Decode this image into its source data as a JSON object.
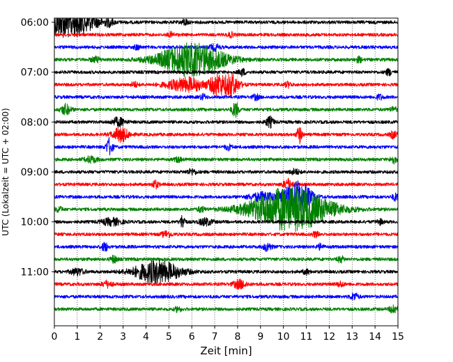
{
  "chart_data": {
    "type": "line",
    "title": "",
    "xlabel": "Zeit  [min]",
    "ylabel": "UTC (Lokalzeit = UTC + 02:00)",
    "xlim": [
      0,
      15
    ],
    "x_ticks": [
      0,
      1,
      2,
      3,
      4,
      5,
      6,
      7,
      8,
      9,
      10,
      11,
      12,
      13,
      14,
      15
    ],
    "x_tick_labels": [
      "0",
      "1",
      "2",
      "3",
      "4",
      "5",
      "6",
      "7",
      "8",
      "9",
      "10",
      "11",
      "12",
      "13",
      "14",
      "15"
    ],
    "y_tick_labels": [
      "06:00",
      "07:00",
      "08:00",
      "09:00",
      "10:00",
      "11:00"
    ],
    "y_range": [
      "05:55",
      "12:05"
    ],
    "grid": "vertical-dotted",
    "trace_interval_min": 15,
    "trace_color_cycle": [
      "#000000",
      "#ff0000",
      "#0000ff",
      "#008000"
    ],
    "traces": [
      {
        "start": "06:00",
        "color": "#000000",
        "events": [
          {
            "t": 0.6,
            "a": 1.8,
            "w": 0.8
          },
          {
            "t": 2.4,
            "a": 0.35,
            "w": 0.12
          },
          {
            "t": 5.7,
            "a": 0.35,
            "w": 0.1
          }
        ]
      },
      {
        "start": "06:15",
        "color": "#ff0000",
        "events": [
          {
            "t": 5.1,
            "a": 0.25,
            "w": 0.1
          },
          {
            "t": 7.7,
            "a": 0.25,
            "w": 0.1
          }
        ]
      },
      {
        "start": "06:30",
        "color": "#0000ff",
        "events": [
          {
            "t": 3.6,
            "a": 0.25,
            "w": 0.1
          },
          {
            "t": 7.0,
            "a": 0.35,
            "w": 0.15
          }
        ]
      },
      {
        "start": "06:45",
        "color": "#008000",
        "events": [
          {
            "t": 6.0,
            "a": 1.9,
            "w": 1.0
          },
          {
            "t": 1.8,
            "a": 0.3,
            "w": 0.15
          },
          {
            "t": 13.3,
            "a": 0.3,
            "w": 0.1
          }
        ]
      },
      {
        "start": "07:00",
        "color": "#000000",
        "events": [
          {
            "t": 8.2,
            "a": 0.4,
            "w": 0.1
          },
          {
            "t": 14.6,
            "a": 0.35,
            "w": 0.1
          }
        ]
      },
      {
        "start": "07:15",
        "color": "#ff0000",
        "events": [
          {
            "t": 3.5,
            "a": 0.3,
            "w": 0.1
          },
          {
            "t": 5.8,
            "a": 0.8,
            "w": 0.6
          },
          {
            "t": 7.1,
            "a": 1.2,
            "w": 0.2
          },
          {
            "t": 7.7,
            "a": 1.3,
            "w": 0.25
          },
          {
            "t": 10.2,
            "a": 0.3,
            "w": 0.1
          }
        ]
      },
      {
        "start": "07:30",
        "color": "#0000ff",
        "events": [
          {
            "t": 6.5,
            "a": 0.3,
            "w": 0.1
          },
          {
            "t": 8.8,
            "a": 0.3,
            "w": 0.1
          },
          {
            "t": 14.2,
            "a": 0.3,
            "w": 0.1
          }
        ]
      },
      {
        "start": "07:45",
        "color": "#008000",
        "events": [
          {
            "t": 0.5,
            "a": 0.6,
            "w": 0.15
          },
          {
            "t": 7.9,
            "a": 0.9,
            "w": 0.1
          },
          {
            "t": 14.8,
            "a": 0.3,
            "w": 0.1
          }
        ]
      },
      {
        "start": "08:00",
        "color": "#000000",
        "events": [
          {
            "t": 2.8,
            "a": 0.5,
            "w": 0.2
          },
          {
            "t": 9.4,
            "a": 0.6,
            "w": 0.12
          }
        ]
      },
      {
        "start": "08:15",
        "color": "#ff0000",
        "events": [
          {
            "t": 2.9,
            "a": 0.8,
            "w": 0.25
          },
          {
            "t": 10.7,
            "a": 1.0,
            "w": 0.08
          },
          {
            "t": 14.8,
            "a": 0.4,
            "w": 0.1
          }
        ]
      },
      {
        "start": "08:30",
        "color": "#0000ff",
        "events": [
          {
            "t": 2.4,
            "a": 1.0,
            "w": 0.1
          },
          {
            "t": 7.6,
            "a": 0.3,
            "w": 0.1
          }
        ]
      },
      {
        "start": "08:45",
        "color": "#008000",
        "events": [
          {
            "t": 1.6,
            "a": 0.35,
            "w": 0.2
          },
          {
            "t": 5.4,
            "a": 0.3,
            "w": 0.1
          },
          {
            "t": 14.8,
            "a": 0.4,
            "w": 0.1
          }
        ]
      },
      {
        "start": "09:00",
        "color": "#000000",
        "events": [
          {
            "t": 6.0,
            "a": 0.3,
            "w": 0.15
          },
          {
            "t": 10.5,
            "a": 0.3,
            "w": 0.15
          }
        ]
      },
      {
        "start": "09:15",
        "color": "#ff0000",
        "events": [
          {
            "t": 4.4,
            "a": 0.45,
            "w": 0.1
          },
          {
            "t": 10.2,
            "a": 0.6,
            "w": 0.15
          }
        ]
      },
      {
        "start": "09:30",
        "color": "#0000ff",
        "events": [
          {
            "t": 9.1,
            "a": 0.5,
            "w": 0.4
          },
          {
            "t": 10.6,
            "a": 2.0,
            "w": 0.4
          },
          {
            "t": 14.9,
            "a": 0.4,
            "w": 0.1
          }
        ]
      },
      {
        "start": "09:45",
        "color": "#008000",
        "events": [
          {
            "t": 10.3,
            "a": 2.6,
            "w": 1.2
          },
          {
            "t": 0.2,
            "a": 0.3,
            "w": 0.1
          },
          {
            "t": 6.4,
            "a": 0.3,
            "w": 0.1
          }
        ]
      },
      {
        "start": "10:00",
        "color": "#000000",
        "events": [
          {
            "t": 2.5,
            "a": 0.4,
            "w": 0.3
          },
          {
            "t": 5.6,
            "a": 0.8,
            "w": 0.08
          },
          {
            "t": 6.6,
            "a": 0.4,
            "w": 0.2
          },
          {
            "t": 14.2,
            "a": 0.3,
            "w": 0.1
          }
        ]
      },
      {
        "start": "10:15",
        "color": "#ff0000",
        "events": [
          {
            "t": 4.9,
            "a": 0.35,
            "w": 0.15
          },
          {
            "t": 11.4,
            "a": 0.3,
            "w": 0.1
          }
        ]
      },
      {
        "start": "10:30",
        "color": "#0000ff",
        "events": [
          {
            "t": 2.2,
            "a": 0.5,
            "w": 0.1
          },
          {
            "t": 9.3,
            "a": 0.5,
            "w": 0.12
          },
          {
            "t": 11.6,
            "a": 0.3,
            "w": 0.1
          }
        ]
      },
      {
        "start": "10:45",
        "color": "#008000",
        "events": [
          {
            "t": 2.6,
            "a": 0.4,
            "w": 0.1
          },
          {
            "t": 12.5,
            "a": 0.35,
            "w": 0.1
          }
        ]
      },
      {
        "start": "11:00",
        "color": "#000000",
        "events": [
          {
            "t": 4.5,
            "a": 1.3,
            "w": 0.7
          },
          {
            "t": 1.0,
            "a": 0.4,
            "w": 0.2
          },
          {
            "t": 11.0,
            "a": 0.3,
            "w": 0.1
          }
        ]
      },
      {
        "start": "11:15",
        "color": "#ff0000",
        "events": [
          {
            "t": 2.3,
            "a": 0.35,
            "w": 0.15
          },
          {
            "t": 8.1,
            "a": 0.5,
            "w": 0.2
          },
          {
            "t": 12.5,
            "a": 0.3,
            "w": 0.1
          }
        ]
      },
      {
        "start": "11:30",
        "color": "#0000ff",
        "events": [
          {
            "t": 13.1,
            "a": 0.4,
            "w": 0.12
          }
        ]
      },
      {
        "start": "11:45",
        "color": "#008000",
        "events": [
          {
            "t": 5.4,
            "a": 0.3,
            "w": 0.1
          },
          {
            "t": 14.8,
            "a": 0.6,
            "w": 0.1
          }
        ]
      }
    ]
  }
}
